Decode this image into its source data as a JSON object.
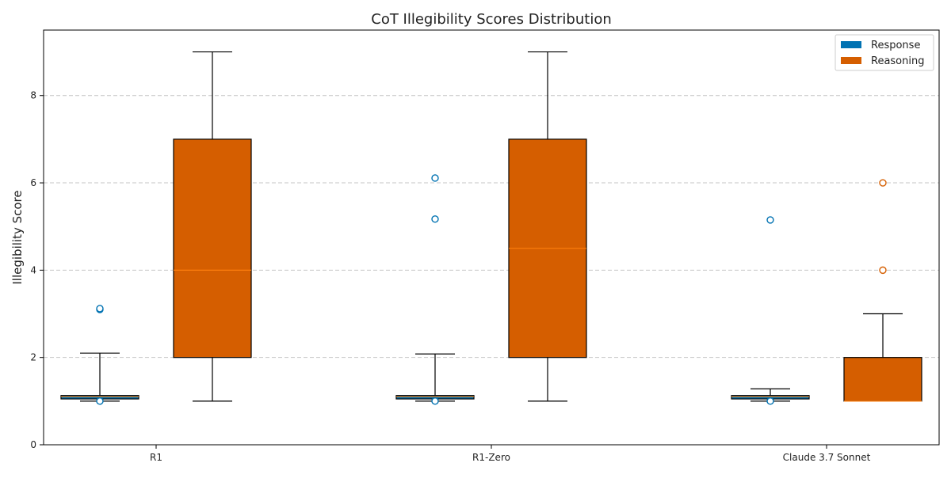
{
  "chart_data": {
    "type": "box",
    "title": "CoT Illegibility Scores Distribution",
    "xlabel": "",
    "ylabel": "Illegibility Score",
    "categories": [
      "R1",
      "R1-Zero",
      "Claude 3.7 Sonnet"
    ],
    "ylim": [
      0,
      9.5
    ],
    "yticks": [
      0,
      2,
      4,
      6,
      8
    ],
    "grid": true,
    "legend_position": "top-right",
    "series": [
      {
        "name": "Response",
        "color": "#0072B2",
        "outlier_fill": "#ffffff",
        "boxes": [
          {
            "whisker_low": 1.0,
            "q1": 1.05,
            "median": 1.1,
            "q3": 1.13,
            "whisker_high": 2.1,
            "outliers": [
              1.0,
              3.1,
              3.12
            ]
          },
          {
            "whisker_low": 1.0,
            "q1": 1.05,
            "median": 1.1,
            "q3": 1.13,
            "whisker_high": 2.08,
            "outliers": [
              1.0,
              5.17,
              6.11
            ]
          },
          {
            "whisker_low": 1.0,
            "q1": 1.05,
            "median": 1.1,
            "q3": 1.13,
            "whisker_high": 1.28,
            "outliers": [
              1.0,
              5.15
            ]
          }
        ]
      },
      {
        "name": "Reasoning",
        "color": "#D55E00",
        "outlier_fill": "#ffffff",
        "boxes": [
          {
            "whisker_low": 1.0,
            "q1": 2.0,
            "median": 4.0,
            "q3": 7.0,
            "whisker_high": 9.0,
            "outliers": []
          },
          {
            "whisker_low": 1.0,
            "q1": 2.0,
            "median": 4.5,
            "q3": 7.0,
            "whisker_high": 9.0,
            "outliers": []
          },
          {
            "whisker_low": 1.0,
            "q1": 1.0,
            "median": 1.0,
            "q3": 2.0,
            "whisker_high": 3.0,
            "outliers": [
              4.0,
              6.0
            ]
          }
        ]
      }
    ]
  }
}
